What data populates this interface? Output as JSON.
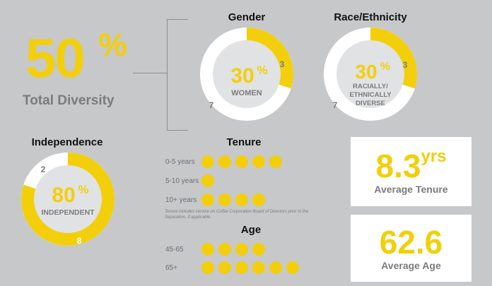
{
  "total_diversity": {
    "value": "50",
    "unit": "%",
    "label": "Total Diversity"
  },
  "colors": {
    "accent": "#f2cf0a",
    "track": "#ffffff",
    "inner": "#e1e2e3",
    "gray_text": "#7a7b7d",
    "background": "#c7c8ca"
  },
  "chart_data": [
    {
      "type": "pie",
      "id": "gender",
      "title": "Gender",
      "center_value": "30",
      "center_unit": "%",
      "center_label": "WOMEN",
      "segments": [
        {
          "label": "3",
          "value": 3
        },
        {
          "label": "7",
          "value": 7
        }
      ]
    },
    {
      "type": "pie",
      "id": "race",
      "title": "Race/Ethnicity",
      "center_value": "30",
      "center_unit": "%",
      "center_label_lines": [
        "RACIALLY/",
        "ETHNICALLY",
        "DIVERSE"
      ],
      "segments": [
        {
          "label": "3",
          "value": 3
        },
        {
          "label": "7",
          "value": 7
        }
      ]
    },
    {
      "type": "pie",
      "id": "independence",
      "title": "Independence",
      "center_value": "80",
      "center_unit": "%",
      "center_label": "INDEPENDENT",
      "segments": [
        {
          "label": "8",
          "value": 8
        },
        {
          "label": "2",
          "value": 2
        }
      ]
    },
    {
      "type": "bar",
      "id": "tenure",
      "title": "Tenure",
      "categories": [
        "0-5 years",
        "5-10 years",
        "10+ years"
      ],
      "values": [
        5,
        1,
        4
      ],
      "note": "Tenure includes service on Colfax Corporation Board of Directors prior to the Separation, if applicable."
    },
    {
      "type": "bar",
      "id": "age",
      "title": "Age",
      "categories": [
        "45-65",
        "65+"
      ],
      "values": [
        4,
        6
      ]
    }
  ],
  "stats": {
    "tenure": {
      "value": "8.3",
      "unit": "yrs",
      "label": "Average Tenure"
    },
    "age": {
      "value": "62.6",
      "label": "Average Age"
    }
  }
}
